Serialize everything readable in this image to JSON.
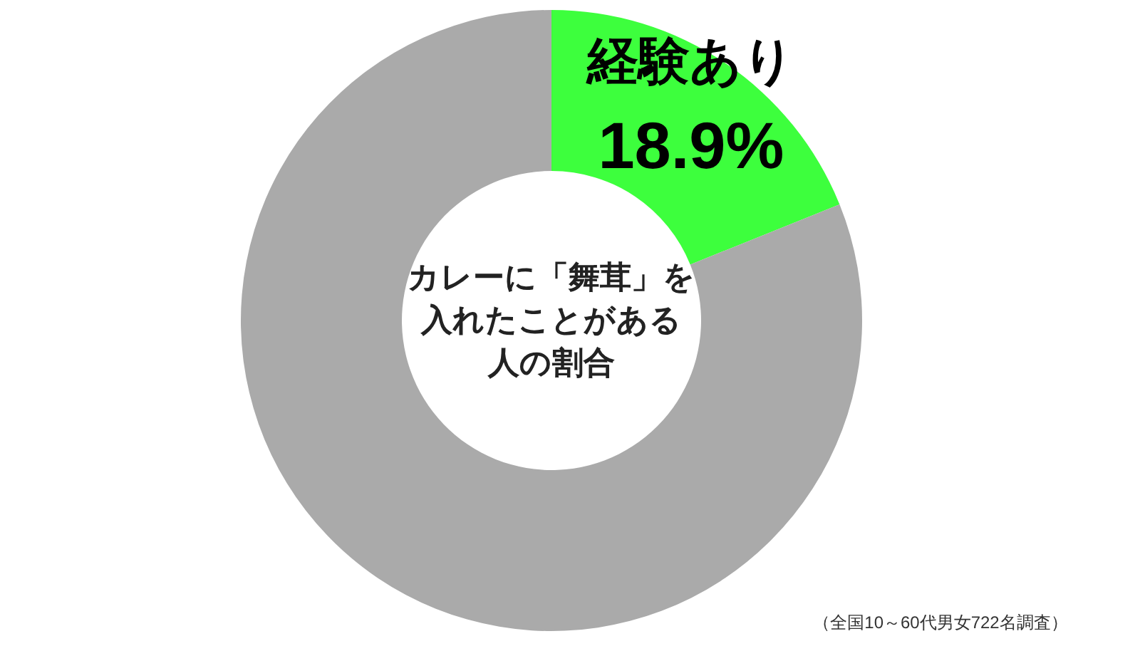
{
  "chart_data": {
    "type": "donut",
    "title": "カレーに「舞茸」を入れたことがある人の割合",
    "categories": [
      "経験あり",
      null
    ],
    "values": [
      18.9,
      81.1
    ],
    "colors": [
      "#3dff3d",
      "#aaaaaa"
    ],
    "value_labels": [
      "18.9%",
      null
    ],
    "annotations": [
      "（全国10～60代男女722名調査）"
    ]
  }
}
